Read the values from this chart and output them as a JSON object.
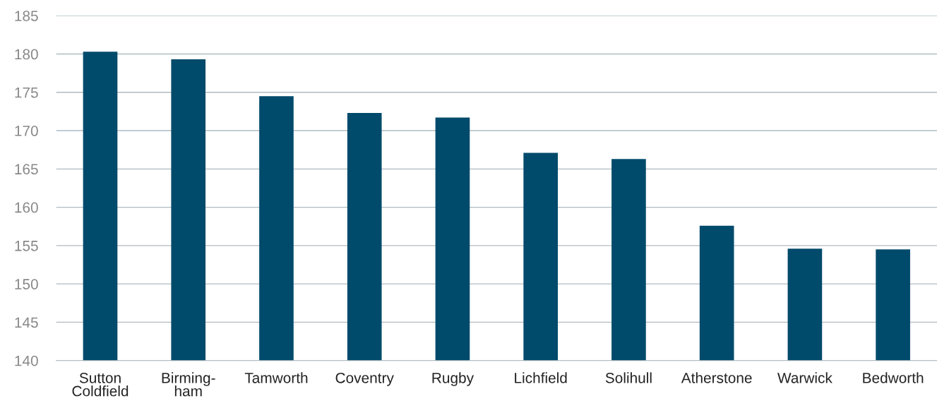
{
  "chart_data": {
    "type": "bar",
    "categories": [
      "Sutton\nColdfield",
      "Birming-\nham",
      "Tamworth",
      "Coventry",
      "Rugby",
      "Lichfield",
      "Solihull",
      "Atherstone",
      "Warwick",
      "Bedworth"
    ],
    "values": [
      180.3,
      179.3,
      174.5,
      172.3,
      171.7,
      167.1,
      166.3,
      157.6,
      154.6,
      154.5
    ],
    "color": "#004a6b",
    "ylim": [
      140,
      185
    ],
    "yticks": [
      140,
      145,
      150,
      155,
      160,
      165,
      170,
      175,
      180,
      185
    ],
    "grid": "y",
    "legend": false
  }
}
